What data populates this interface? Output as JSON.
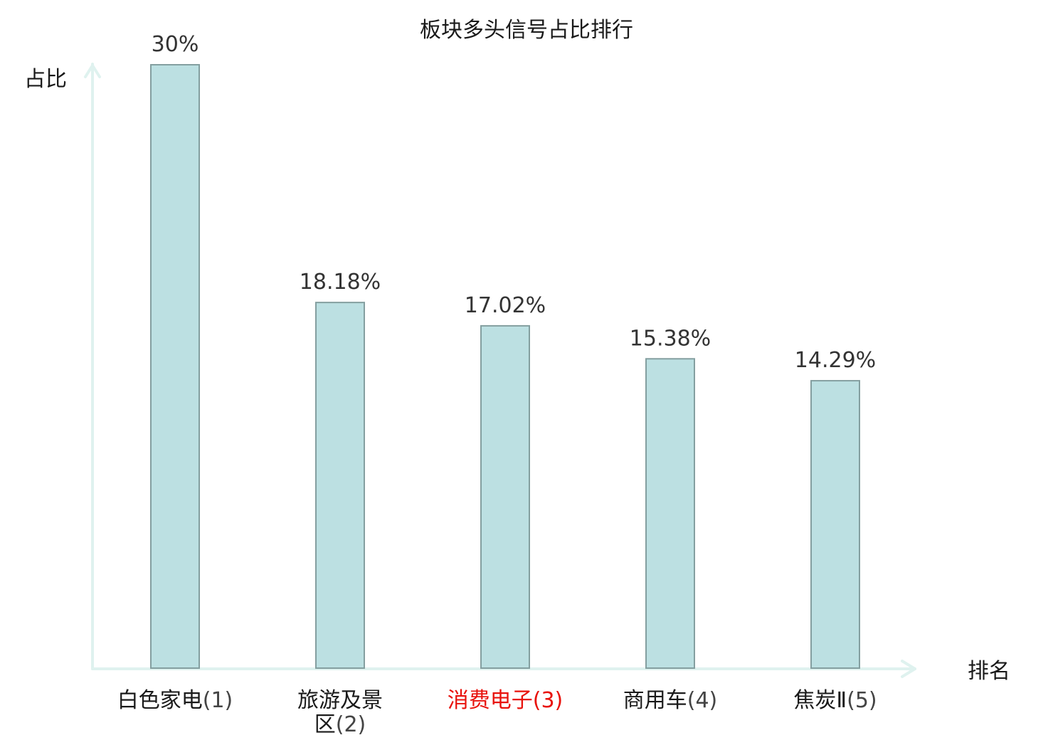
{
  "chart_data": {
    "type": "bar",
    "title": "板块多头信号占比排行",
    "ylabel": "占比",
    "xlabel": "排名",
    "ylim": [
      0,
      30
    ],
    "grid": false,
    "categories": [
      "白色家电(1)",
      "旅游及景区(2)",
      "消费电子(3)",
      "商用车(4)",
      "焦炭Ⅱ(5)"
    ],
    "category_lines": [
      [
        {
          "main": "白色家电",
          "paren": "(1)"
        }
      ],
      [
        {
          "main": "旅游及景",
          "paren": ""
        },
        {
          "main": "区",
          "paren": "(2)"
        }
      ],
      [
        {
          "main": "消费电子",
          "paren": "(3)"
        }
      ],
      [
        {
          "main": "商用车",
          "paren": "(4)"
        }
      ],
      [
        {
          "main": "焦炭Ⅱ",
          "paren": "(5)"
        }
      ]
    ],
    "values": [
      30,
      18.18,
      17.02,
      15.38,
      14.29
    ],
    "value_labels": [
      "30%",
      "18.18%",
      "17.02%",
      "15.38%",
      "14.29%"
    ],
    "highlight_index": 2,
    "colors": {
      "bar_fill": "#bce0e2",
      "bar_stroke": "#849fa0",
      "axis": "#dff2ef",
      "highlight_text": "#e8120c"
    }
  }
}
